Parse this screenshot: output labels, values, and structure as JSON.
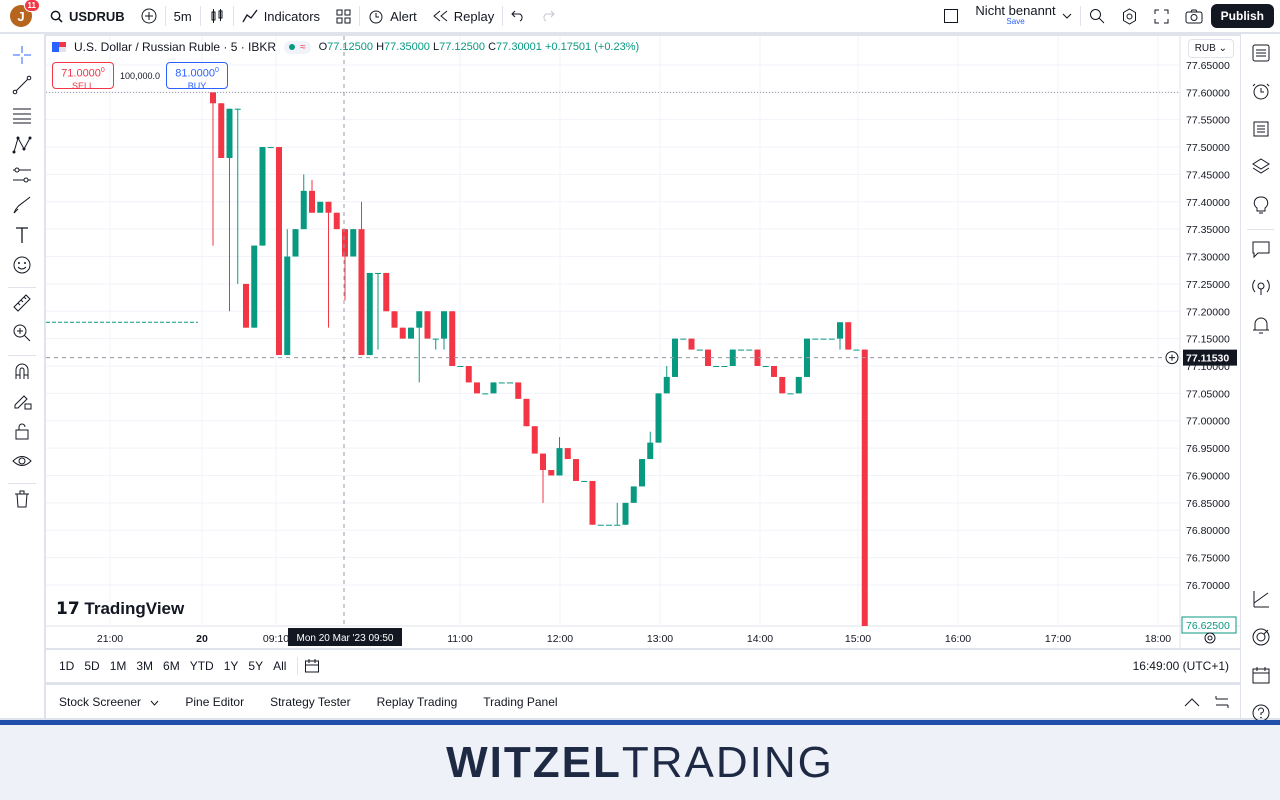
{
  "topbar": {
    "avatar_letter": "J",
    "avatar_badge": "11",
    "symbol": "USDRUB",
    "interval": "5m",
    "indicators_label": "Indicators",
    "alert_label": "Alert",
    "replay_label": "Replay",
    "layout_name": "Nicht benannt",
    "save_label": "Save",
    "publish_label": "Publish"
  },
  "legend": {
    "title": "U.S. Dollar / Russian Ruble · 5 · IBKR",
    "o": "77.12500",
    "h": "77.35000",
    "l": "77.12500",
    "c": "77.30001",
    "change": "+0.17501 (+0.23%)"
  },
  "trade": {
    "sell_price": "71.0000",
    "sell_sup": "0",
    "sell_label": "SELL",
    "qty": "100,000.0",
    "buy_price": "81.0000",
    "buy_sup": "0",
    "buy_label": "BUY"
  },
  "chart": {
    "currency": "RUB",
    "brand": "TradingView",
    "crosshair_date": "Mon 20 Mar '23   09:50",
    "crosshair_price": "77.11530",
    "last_price_label": "76.62500",
    "price_ticks": [
      "77.65000",
      "77.60000",
      "77.55000",
      "77.50000",
      "77.45000",
      "77.40000",
      "77.35000",
      "77.30000",
      "77.25000",
      "77.20000",
      "77.15000",
      "77.10000",
      "77.05000",
      "77.00000",
      "76.95000",
      "76.90000",
      "76.85000",
      "76.80000",
      "76.75000",
      "76.70000"
    ],
    "time_ticks": [
      "21:00",
      "20",
      "09:10",
      "11:00",
      "12:00",
      "13:00",
      "14:00",
      "15:00",
      "16:00",
      "17:00",
      "18:00"
    ],
    "colors": {
      "up": "#089981",
      "down": "#f23645"
    }
  },
  "chart_data": {
    "type": "candlestick",
    "ylim": [
      76.625,
      77.67
    ],
    "candles": [
      {
        "o": 77.6,
        "h": 77.6,
        "l": 77.32,
        "c": 77.58
      },
      {
        "o": 77.58,
        "h": 77.58,
        "l": 77.48,
        "c": 77.48
      },
      {
        "o": 77.48,
        "h": 77.57,
        "l": 77.2,
        "c": 77.57
      },
      {
        "o": 77.57,
        "h": 77.57,
        "l": 77.25,
        "c": 77.57
      },
      {
        "o": 77.25,
        "h": 77.25,
        "l": 77.17,
        "c": 77.17
      },
      {
        "o": 77.17,
        "h": 77.32,
        "l": 77.17,
        "c": 77.32
      },
      {
        "o": 77.32,
        "h": 77.5,
        "l": 77.32,
        "c": 77.5
      },
      {
        "o": 77.5,
        "h": 77.5,
        "l": 77.5,
        "c": 77.5
      },
      {
        "o": 77.5,
        "h": 77.5,
        "l": 77.12,
        "c": 77.12
      },
      {
        "o": 77.12,
        "h": 77.35,
        "l": 77.12,
        "c": 77.3
      },
      {
        "o": 77.3,
        "h": 77.35,
        "l": 77.3,
        "c": 77.35
      },
      {
        "o": 77.35,
        "h": 77.45,
        "l": 77.35,
        "c": 77.42
      },
      {
        "o": 77.42,
        "h": 77.44,
        "l": 77.38,
        "c": 77.38
      },
      {
        "o": 77.38,
        "h": 77.4,
        "l": 77.38,
        "c": 77.4
      },
      {
        "o": 77.4,
        "h": 77.4,
        "l": 77.17,
        "c": 77.38
      },
      {
        "o": 77.38,
        "h": 77.38,
        "l": 77.35,
        "c": 77.35
      },
      {
        "o": 77.35,
        "h": 77.35,
        "l": 77.22,
        "c": 77.3
      },
      {
        "o": 77.3,
        "h": 77.35,
        "l": 77.3,
        "c": 77.35
      },
      {
        "o": 77.35,
        "h": 77.4,
        "l": 77.12,
        "c": 77.12
      },
      {
        "o": 77.12,
        "h": 77.27,
        "l": 77.12,
        "c": 77.27
      },
      {
        "o": 77.27,
        "h": 77.27,
        "l": 77.13,
        "c": 77.27
      },
      {
        "o": 77.27,
        "h": 77.27,
        "l": 77.2,
        "c": 77.2
      },
      {
        "o": 77.2,
        "h": 77.2,
        "l": 77.17,
        "c": 77.17
      },
      {
        "o": 77.17,
        "h": 77.17,
        "l": 77.15,
        "c": 77.15
      },
      {
        "o": 77.15,
        "h": 77.17,
        "l": 77.15,
        "c": 77.17
      },
      {
        "o": 77.17,
        "h": 77.2,
        "l": 77.07,
        "c": 77.2
      },
      {
        "o": 77.2,
        "h": 77.2,
        "l": 77.15,
        "c": 77.15
      },
      {
        "o": 77.15,
        "h": 77.15,
        "l": 77.13,
        "c": 77.15
      },
      {
        "o": 77.15,
        "h": 77.2,
        "l": 77.13,
        "c": 77.2
      },
      {
        "o": 77.2,
        "h": 77.2,
        "l": 77.1,
        "c": 77.1
      },
      {
        "o": 77.1,
        "h": 77.1,
        "l": 77.1,
        "c": 77.1
      },
      {
        "o": 77.1,
        "h": 77.1,
        "l": 77.07,
        "c": 77.07
      },
      {
        "o": 77.07,
        "h": 77.07,
        "l": 77.05,
        "c": 77.05
      },
      {
        "o": 77.05,
        "h": 77.05,
        "l": 77.05,
        "c": 77.05
      },
      {
        "o": 77.05,
        "h": 77.07,
        "l": 77.05,
        "c": 77.07
      },
      {
        "o": 77.07,
        "h": 77.07,
        "l": 77.07,
        "c": 77.07
      },
      {
        "o": 77.07,
        "h": 77.07,
        "l": 77.07,
        "c": 77.07
      },
      {
        "o": 77.07,
        "h": 77.07,
        "l": 77.04,
        "c": 77.04
      },
      {
        "o": 77.04,
        "h": 77.04,
        "l": 76.99,
        "c": 76.99
      },
      {
        "o": 76.99,
        "h": 76.99,
        "l": 76.94,
        "c": 76.94
      },
      {
        "o": 76.94,
        "h": 76.94,
        "l": 76.85,
        "c": 76.91
      },
      {
        "o": 76.91,
        "h": 76.91,
        "l": 76.9,
        "c": 76.9
      },
      {
        "o": 76.9,
        "h": 76.97,
        "l": 76.9,
        "c": 76.95
      },
      {
        "o": 76.95,
        "h": 76.95,
        "l": 76.93,
        "c": 76.93
      },
      {
        "o": 76.93,
        "h": 76.93,
        "l": 76.89,
        "c": 76.89
      },
      {
        "o": 76.89,
        "h": 76.89,
        "l": 76.89,
        "c": 76.89
      },
      {
        "o": 76.89,
        "h": 76.89,
        "l": 76.81,
        "c": 76.81
      },
      {
        "o": 76.81,
        "h": 76.81,
        "l": 76.81,
        "c": 76.81
      },
      {
        "o": 76.81,
        "h": 76.81,
        "l": 76.81,
        "c": 76.81
      },
      {
        "o": 76.81,
        "h": 76.85,
        "l": 76.81,
        "c": 76.81
      },
      {
        "o": 76.81,
        "h": 76.85,
        "l": 76.81,
        "c": 76.85
      },
      {
        "o": 76.85,
        "h": 76.88,
        "l": 76.85,
        "c": 76.88
      },
      {
        "o": 76.88,
        "h": 76.93,
        "l": 76.88,
        "c": 76.93
      },
      {
        "o": 76.93,
        "h": 76.98,
        "l": 76.93,
        "c": 76.96
      },
      {
        "o": 76.96,
        "h": 77.05,
        "l": 76.96,
        "c": 77.05
      },
      {
        "o": 77.05,
        "h": 77.1,
        "l": 77.05,
        "c": 77.08
      },
      {
        "o": 77.08,
        "h": 77.15,
        "l": 77.08,
        "c": 77.15
      },
      {
        "o": 77.15,
        "h": 77.15,
        "l": 77.15,
        "c": 77.15
      },
      {
        "o": 77.15,
        "h": 77.15,
        "l": 77.13,
        "c": 77.13
      },
      {
        "o": 77.13,
        "h": 77.13,
        "l": 77.13,
        "c": 77.13
      },
      {
        "o": 77.13,
        "h": 77.13,
        "l": 77.1,
        "c": 77.1
      },
      {
        "o": 77.1,
        "h": 77.1,
        "l": 77.1,
        "c": 77.1
      },
      {
        "o": 77.1,
        "h": 77.1,
        "l": 77.1,
        "c": 77.1
      },
      {
        "o": 77.1,
        "h": 77.13,
        "l": 77.1,
        "c": 77.13
      },
      {
        "o": 77.13,
        "h": 77.13,
        "l": 77.13,
        "c": 77.13
      },
      {
        "o": 77.13,
        "h": 77.13,
        "l": 77.13,
        "c": 77.13
      },
      {
        "o": 77.13,
        "h": 77.13,
        "l": 77.1,
        "c": 77.1
      },
      {
        "o": 77.1,
        "h": 77.1,
        "l": 77.1,
        "c": 77.1
      },
      {
        "o": 77.1,
        "h": 77.1,
        "l": 77.08,
        "c": 77.08
      },
      {
        "o": 77.08,
        "h": 77.08,
        "l": 77.05,
        "c": 77.05
      },
      {
        "o": 77.05,
        "h": 77.05,
        "l": 77.05,
        "c": 77.05
      },
      {
        "o": 77.05,
        "h": 77.08,
        "l": 77.05,
        "c": 77.08
      },
      {
        "o": 77.08,
        "h": 77.15,
        "l": 77.08,
        "c": 77.15
      },
      {
        "o": 77.15,
        "h": 77.15,
        "l": 77.15,
        "c": 77.15
      },
      {
        "o": 77.15,
        "h": 77.15,
        "l": 77.15,
        "c": 77.15
      },
      {
        "o": 77.15,
        "h": 77.15,
        "l": 77.15,
        "c": 77.15
      },
      {
        "o": 77.15,
        "h": 77.18,
        "l": 77.13,
        "c": 77.18
      },
      {
        "o": 77.18,
        "h": 77.18,
        "l": 77.13,
        "c": 77.13
      },
      {
        "o": 77.13,
        "h": 77.13,
        "l": 77.13,
        "c": 77.13
      },
      {
        "o": 77.13,
        "h": 77.13,
        "l": 76.625,
        "c": 76.625
      }
    ]
  },
  "ranges": [
    "1D",
    "5D",
    "1M",
    "3M",
    "6M",
    "YTD",
    "1Y",
    "5Y",
    "All"
  ],
  "clock": "16:49:00 (UTC+1)",
  "panels": [
    "Stock Screener",
    "Pine Editor",
    "Strategy Tester",
    "Replay Trading",
    "Trading Panel"
  ],
  "brand_footer": {
    "part1": "WITZEL",
    "part2": "TRADING"
  }
}
